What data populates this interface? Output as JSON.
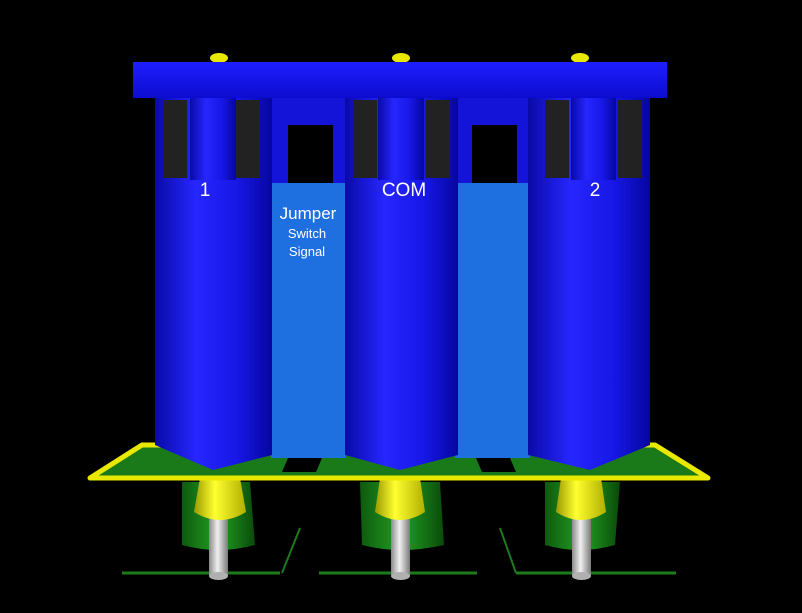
{
  "labels": {
    "pin_1": "1",
    "pin_com": "COM",
    "pin_2": "2",
    "jumper": "Jumper",
    "switch": "Switch",
    "signal": "Signal"
  },
  "colors": {
    "background": "#000000",
    "body_blue": "#1a1aff",
    "jumper_blue": "#1e6fe0",
    "frame_yellow": "#e8e800",
    "board_green": "#1a7a1a",
    "pin_grey": "#c8c8c8",
    "slot_dark": "#222222"
  }
}
